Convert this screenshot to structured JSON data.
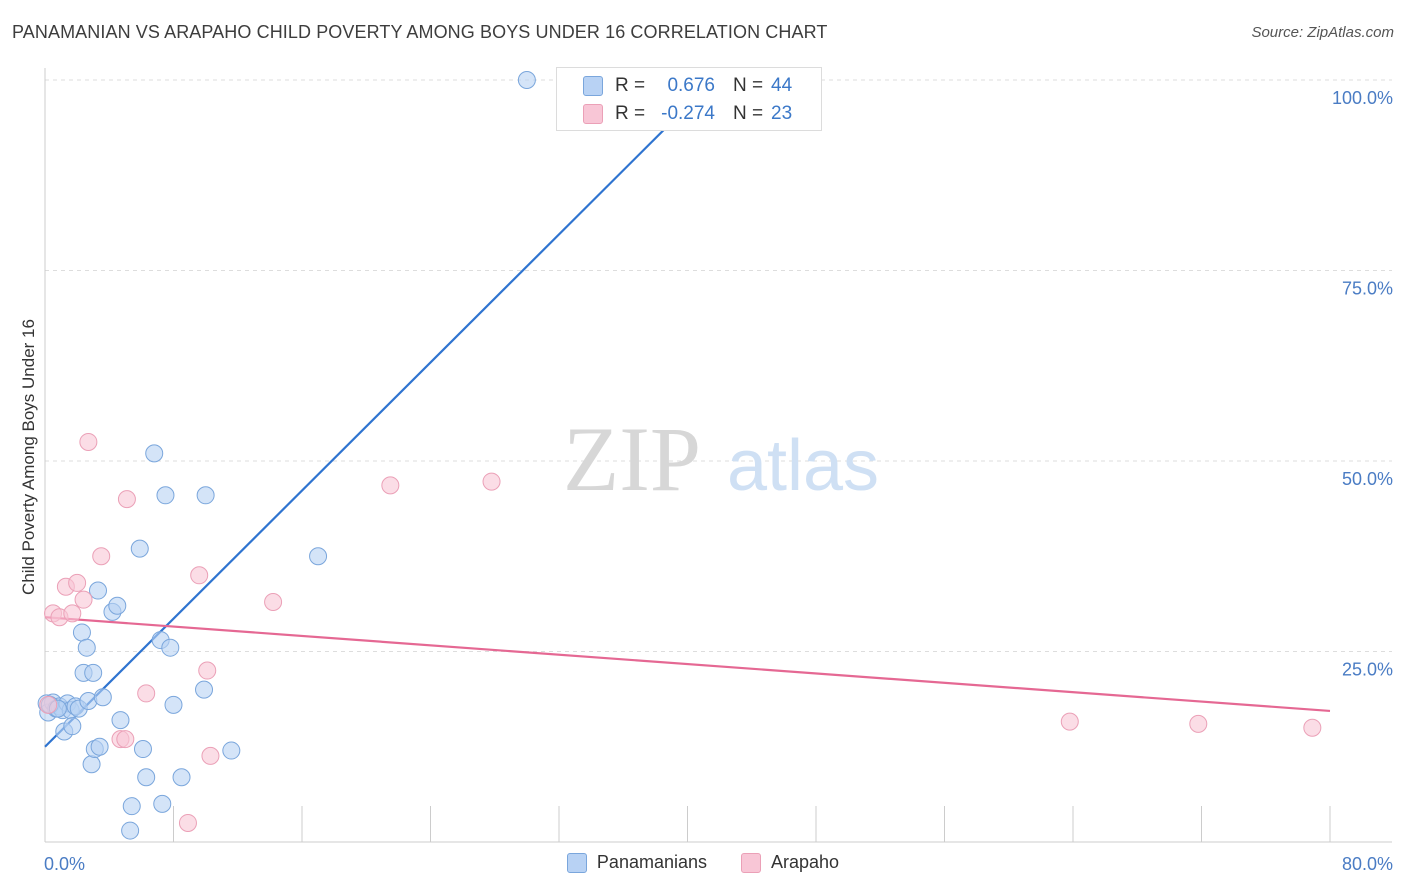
{
  "title": "PANAMANIAN VS ARAPAHO CHILD POVERTY AMONG BOYS UNDER 16 CORRELATION CHART",
  "source": "Source: ZipAtlas.com",
  "watermark": {
    "zip": "ZIP",
    "atlas": "atlas"
  },
  "colors": {
    "blue_fill": "#b8d2f4",
    "blue_stroke": "#7aa6dc",
    "blue_line": "#2f74d0",
    "blue_text": "#3b78c8",
    "pink_fill": "#f8c6d6",
    "pink_stroke": "#eba0b7",
    "pink_line": "#e56893",
    "pink_text": "#e56893",
    "axis_text": "#4a7cc4",
    "grid": "#dddddd"
  },
  "stats": {
    "r_label": "R =",
    "n_label": "N =",
    "rows": [
      {
        "series": "Panamanians",
        "r": "0.676",
        "n": "44"
      },
      {
        "series": "Arapaho",
        "r": "-0.274",
        "n": "23"
      }
    ]
  },
  "legend": [
    "Panamanians",
    "Arapaho"
  ],
  "chart_data": {
    "type": "scatter",
    "title": "PANAMANIAN VS ARAPAHO CHILD POVERTY AMONG BOYS UNDER 16 CORRELATION CHART",
    "xlabel": "",
    "ylabel": "Child Poverty Among Boys Under 16",
    "xlim": [
      0,
      80
    ],
    "ylim": [
      0,
      100
    ],
    "x_tick_labels": [
      "0.0%",
      "80.0%"
    ],
    "y_ticks": [
      25,
      50,
      75,
      100
    ],
    "y_tick_labels": [
      "25.0%",
      "50.0%",
      "75.0%",
      "100.0%"
    ],
    "grid": true,
    "series": [
      {
        "name": "Panamanians",
        "points": [
          [
            0.1,
            18.2
          ],
          [
            0.2,
            17.0
          ],
          [
            0.5,
            18.3
          ],
          [
            0.7,
            17.5
          ],
          [
            0.9,
            17.8
          ],
          [
            1.1,
            17.3
          ],
          [
            1.2,
            14.5
          ],
          [
            1.4,
            18.2
          ],
          [
            1.6,
            17.3
          ],
          [
            1.7,
            15.2
          ],
          [
            1.9,
            17.8
          ],
          [
            2.1,
            17.5
          ],
          [
            2.3,
            27.5
          ],
          [
            2.4,
            22.2
          ],
          [
            2.6,
            25.5
          ],
          [
            2.7,
            18.5
          ],
          [
            2.9,
            10.2
          ],
          [
            3.0,
            22.2
          ],
          [
            3.1,
            12.2
          ],
          [
            3.3,
            33.0
          ],
          [
            3.4,
            12.5
          ],
          [
            3.6,
            19.0
          ],
          [
            4.2,
            30.2
          ],
          [
            4.5,
            31.0
          ],
          [
            4.7,
            16.0
          ],
          [
            5.3,
            1.5
          ],
          [
            5.4,
            4.7
          ],
          [
            5.9,
            38.5
          ],
          [
            6.1,
            12.2
          ],
          [
            6.3,
            8.5
          ],
          [
            6.8,
            51.0
          ],
          [
            7.2,
            26.5
          ],
          [
            7.3,
            5.0
          ],
          [
            7.5,
            45.5
          ],
          [
            7.8,
            25.5
          ],
          [
            8.0,
            18.0
          ],
          [
            8.5,
            8.5
          ],
          [
            9.9,
            20.0
          ],
          [
            10.0,
            45.5
          ],
          [
            11.6,
            12.0
          ],
          [
            17.0,
            37.5
          ],
          [
            30.0,
            100.0
          ],
          [
            0.3,
            18.0
          ],
          [
            0.8,
            17.5
          ]
        ],
        "trend": {
          "x": [
            0,
            39.5
          ],
          "y": [
            12.5,
            95.5
          ]
        }
      },
      {
        "name": "Arapaho",
        "points": [
          [
            0.5,
            30.0
          ],
          [
            0.9,
            29.5
          ],
          [
            1.3,
            33.5
          ],
          [
            1.7,
            30.0
          ],
          [
            2.0,
            34.0
          ],
          [
            2.4,
            31.8
          ],
          [
            2.7,
            52.5
          ],
          [
            3.5,
            37.5
          ],
          [
            4.7,
            13.5
          ],
          [
            5.0,
            13.5
          ],
          [
            5.1,
            45.0
          ],
          [
            6.3,
            19.5
          ],
          [
            8.9,
            2.5
          ],
          [
            9.6,
            35.0
          ],
          [
            10.1,
            22.5
          ],
          [
            10.3,
            11.3
          ],
          [
            14.2,
            31.5
          ],
          [
            21.5,
            46.8
          ],
          [
            27.8,
            47.3
          ],
          [
            63.8,
            15.8
          ],
          [
            71.8,
            15.5
          ],
          [
            78.9,
            15.0
          ],
          [
            0.2,
            18.0
          ]
        ],
        "trend": {
          "x": [
            0,
            80
          ],
          "y": [
            29.5,
            17.2
          ]
        }
      }
    ]
  }
}
